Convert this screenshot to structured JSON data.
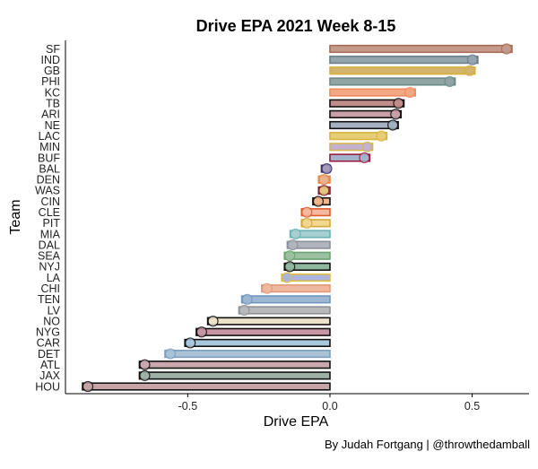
{
  "chart_data": {
    "type": "bar",
    "orientation": "horizontal",
    "title": "Drive EPA 2021 Week 8-15",
    "xlabel": "Drive EPA",
    "ylabel": "Team",
    "caption": "By Judah Fortgang | @throwthedamball",
    "xlim": [
      -0.93,
      0.7
    ],
    "xticks": [
      -0.5,
      0.0,
      0.5
    ],
    "xtick_labels": [
      "-0.5",
      "0.0",
      "0.5"
    ],
    "grid": false,
    "categories": [
      "SF",
      "IND",
      "GB",
      "PHI",
      "KC",
      "TB",
      "ARI",
      "NE",
      "LAC",
      "MIN",
      "BUF",
      "BAL",
      "DEN",
      "WAS",
      "CIN",
      "CLE",
      "PIT",
      "MIA",
      "DAL",
      "SEA",
      "NYJ",
      "LA",
      "CHI",
      "TEN",
      "LV",
      "NO",
      "NYG",
      "CAR",
      "DET",
      "ATL",
      "JAX",
      "HOU"
    ],
    "values": [
      0.64,
      0.52,
      0.51,
      0.44,
      0.3,
      0.26,
      0.25,
      0.24,
      0.2,
      0.15,
      0.14,
      -0.03,
      -0.04,
      -0.04,
      -0.06,
      -0.1,
      -0.1,
      -0.14,
      -0.15,
      -0.16,
      -0.16,
      -0.17,
      -0.24,
      -0.31,
      -0.32,
      -0.43,
      -0.47,
      -0.51,
      -0.58,
      -0.67,
      -0.67,
      -0.87
    ],
    "fill_colors": [
      "#c49a8c",
      "#96a4ad",
      "#d4b36a",
      "#8fa4a3",
      "#f2a884",
      "#c18d8b",
      "#c9a0aa",
      "#a3b1c2",
      "#e6cd76",
      "#c4b0cf",
      "#a3b3cb",
      "#a79bbd",
      "#e8b38f",
      "#e4c57c",
      "#f3b58a",
      "#f2b9a0",
      "#f2d691",
      "#a5cfd0",
      "#b1b4bc",
      "#9dc0a0",
      "#8fb89f",
      "#a9b5dd",
      "#f0b89f",
      "#9db7d1",
      "#b7b9bb",
      "#ece1c9",
      "#c895a4",
      "#a9c8dd",
      "#a9c2d6",
      "#caa8ae",
      "#9fb1a7",
      "#c6a3a5"
    ],
    "edge_colors": [
      "#a86c56",
      "#6b7f8d",
      "#d7b03a",
      "#6a8b89",
      "#ef8a5a",
      "#111111",
      "#111111",
      "#111111",
      "#d8b53e",
      "#d2b84d",
      "#9b1c3e",
      "#3a2f6e",
      "#e58640",
      "#7b1f2e",
      "#111111",
      "#e05a2a",
      "#d4a83a",
      "#6bb2b3",
      "#8b8f99",
      "#6aa46e",
      "#111111",
      "#e1be3c",
      "#e09a7a",
      "#6e96c1",
      "#8e9094",
      "#111111",
      "#111111",
      "#111111",
      "#7a9fbf",
      "#111111",
      "#111111",
      "#111111"
    ]
  }
}
